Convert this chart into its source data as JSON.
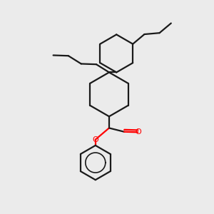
{
  "background_color": "#ebebeb",
  "line_color": "#1a1a1a",
  "oxygen_color": "#ff0000",
  "line_width": 1.6,
  "figsize": [
    3.0,
    3.0
  ],
  "dpi": 100,
  "xlim": [
    0,
    10
  ],
  "ylim": [
    0,
    10
  ]
}
